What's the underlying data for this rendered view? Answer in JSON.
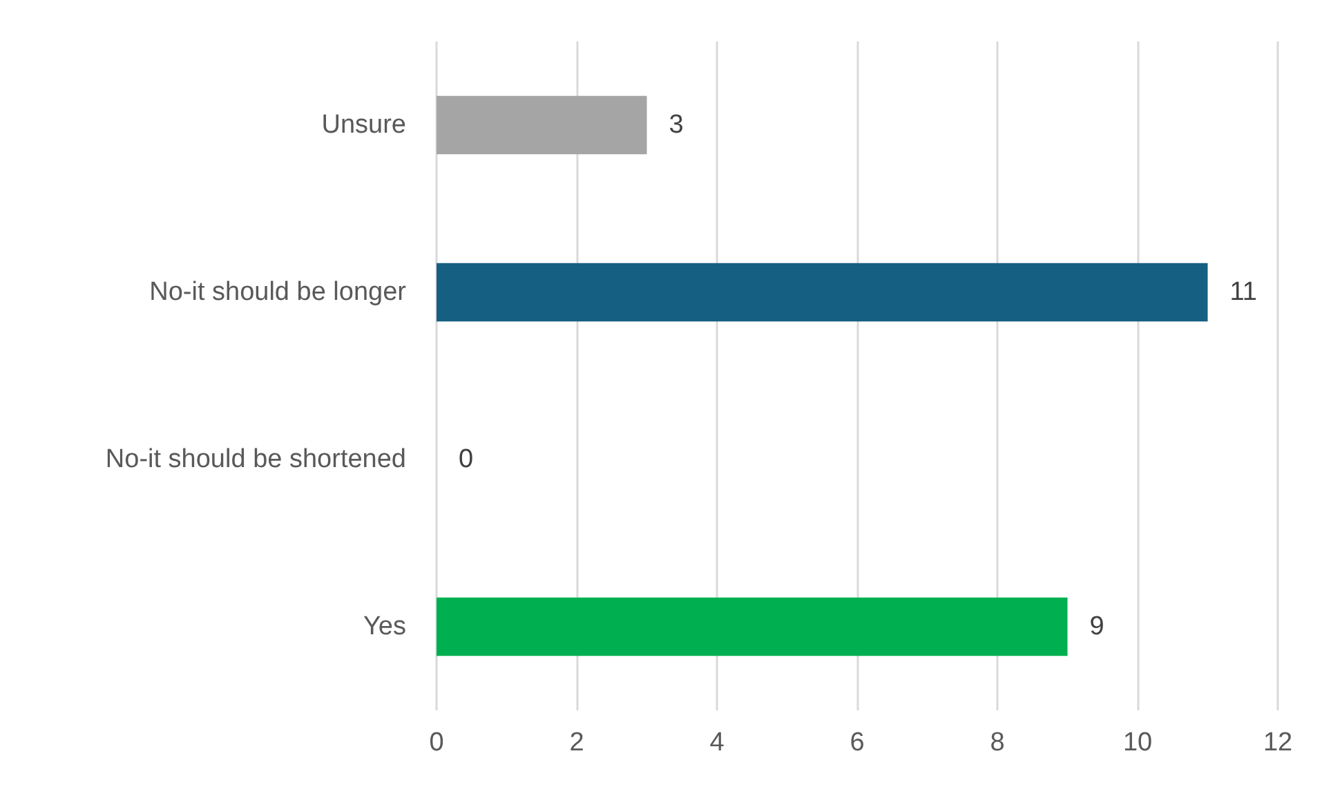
{
  "chart_data": {
    "type": "bar",
    "orientation": "horizontal",
    "categories": [
      "Unsure",
      "No-it should be longer",
      "No-it should be shortened",
      "Yes"
    ],
    "values": [
      3,
      11,
      0,
      9
    ],
    "colors": [
      "#a5a5a5",
      "#156082",
      "#156082",
      "#00b050"
    ],
    "xlim": [
      0,
      12
    ],
    "xticks": [
      0,
      2,
      4,
      6,
      8,
      10,
      12
    ],
    "grid": "x",
    "data_labels": true
  }
}
